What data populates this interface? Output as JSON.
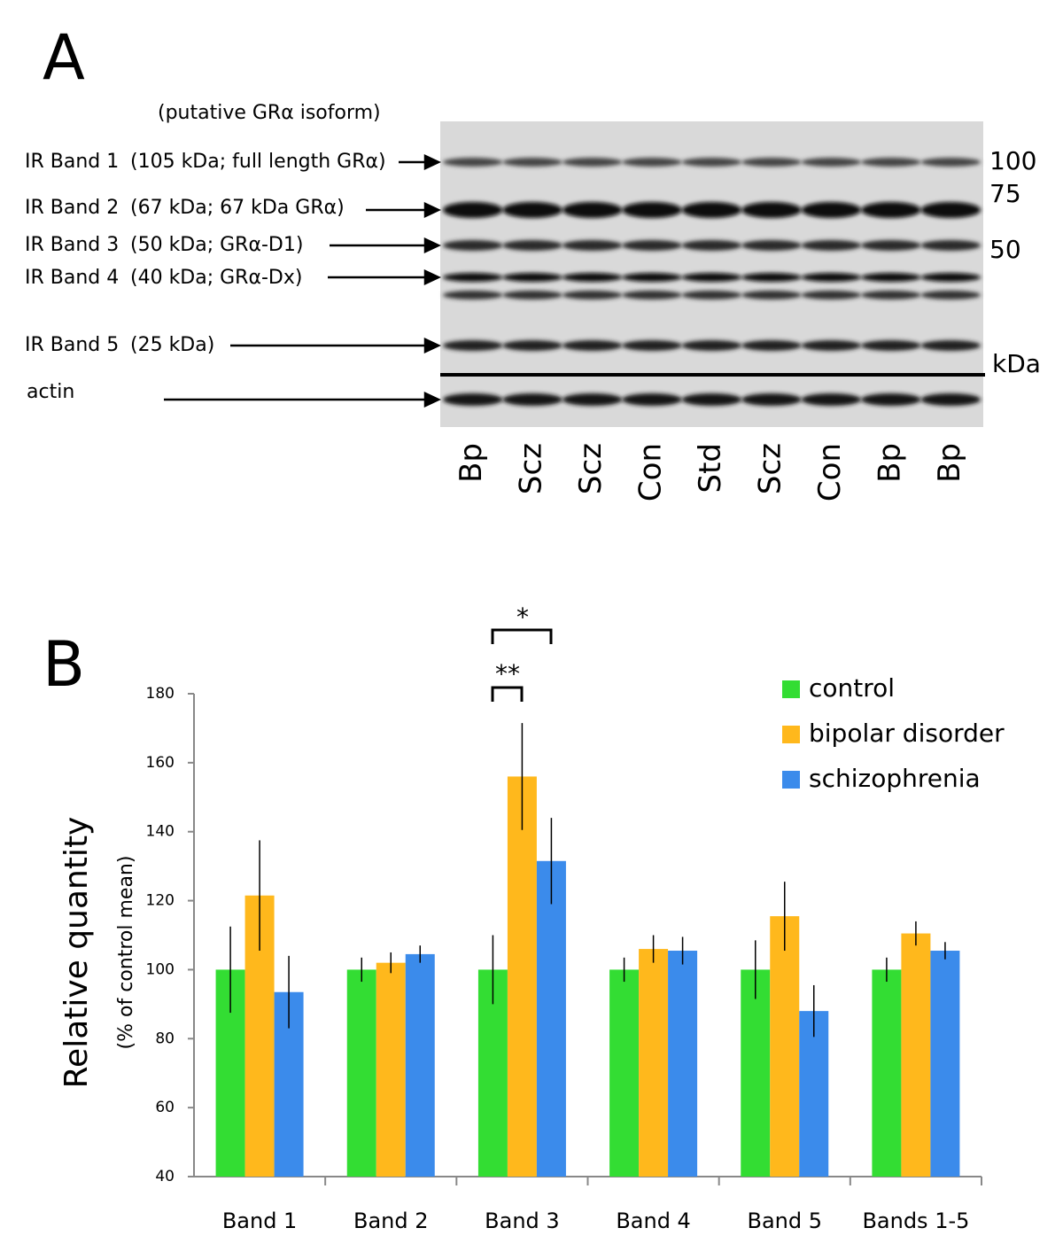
{
  "panel_a": {
    "label": "A",
    "header": "(putative GRα isoform)",
    "bands": [
      {
        "name": "IR Band 1",
        "desc": "(105 kDa; full length GRα)"
      },
      {
        "name": "IR Band 2",
        "desc": "(67 kDa; 67 kDa GRα)"
      },
      {
        "name": "IR Band 3",
        "desc": "(50 kDa; GRα-D1)"
      },
      {
        "name": "IR Band 4",
        "desc": "(40 kDa; GRα-Dx)"
      },
      {
        "name": "IR Band 5",
        "desc": "(25 kDa)"
      }
    ],
    "actin": "actin",
    "markers": [
      100,
      75,
      50
    ],
    "unit": "kDa",
    "lanes": [
      "Bp",
      "Scz",
      "Scz",
      "Con",
      "Std",
      "Scz",
      "Con",
      "Bp",
      "Bp"
    ]
  },
  "chart_data": {
    "type": "bar",
    "panel_label": "B",
    "y_label": "Relative quantity",
    "y_sublabel": "(% of control mean)",
    "categories": [
      "Band 1",
      "Band 2",
      "Band 3",
      "Band 4",
      "Band 5",
      "Bands 1-5"
    ],
    "series": [
      {
        "name": "control",
        "color": "#33dd33",
        "values": [
          100,
          100,
          100,
          100,
          100,
          100
        ],
        "errors": [
          12.5,
          3.5,
          10,
          3.5,
          8.5,
          3.5
        ]
      },
      {
        "name": "bipolar disorder",
        "color": "#ffb81c",
        "values": [
          121.5,
          102,
          156,
          106,
          115.5,
          110.5
        ],
        "errors": [
          16,
          3,
          15.5,
          4,
          10,
          3.5
        ]
      },
      {
        "name": "schizophrenia",
        "color": "#3b8beb",
        "values": [
          93.5,
          104.5,
          131.5,
          105.5,
          88,
          105.5
        ],
        "errors": [
          10.5,
          2.5,
          12.5,
          4,
          7.5,
          2.5
        ]
      }
    ],
    "ylim": [
      40,
      180
    ],
    "yticks": [
      40,
      60,
      80,
      100,
      120,
      140,
      160,
      180
    ],
    "annotations": [
      "**",
      "*"
    ]
  }
}
